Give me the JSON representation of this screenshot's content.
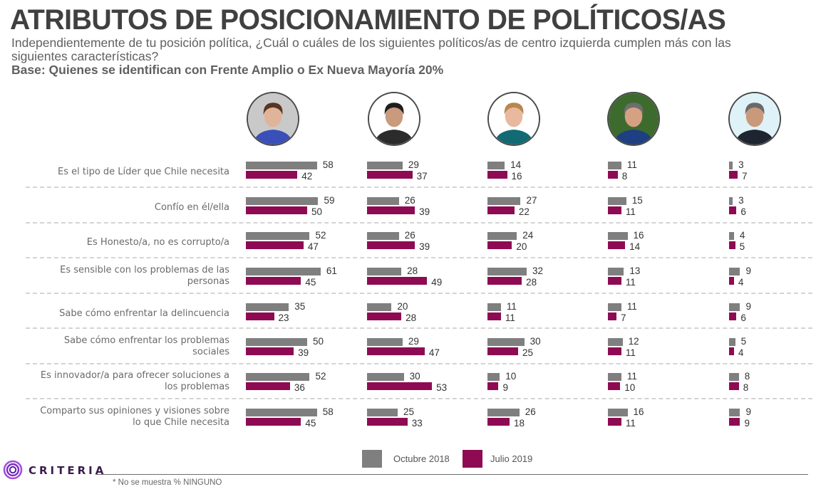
{
  "header": {
    "title": "ATRIBUTOS DE POSICIONAMIENTO DE POLÍTICOS/AS",
    "subtitle": "Independientemente de tu posición política, ¿Cuál o cuáles de los siguientes políticos/as de centro izquierda cumplen más con las siguientes características?",
    "base": "Base: Quienes se identifican con Frente Amplio o Ex Nueva Mayoría 20%"
  },
  "politicians": [
    {
      "id": "politician-1",
      "description": "woman with short brown hair, blue top",
      "bg": "#c9c9c9",
      "shirt": "#3a4fb8",
      "hair": "#5a3522",
      "skin": "#e0b49a"
    },
    {
      "id": "politician-2",
      "description": "man with glasses and dark hair, dark jacket",
      "bg": "#ffffff",
      "shirt": "#2b2b2b",
      "hair": "#1e1e1e",
      "skin": "#c99a7c"
    },
    {
      "id": "politician-3",
      "description": "woman with blonde hair, teal jacket",
      "bg": "#ffffff",
      "shirt": "#116a74",
      "hair": "#b8864e",
      "skin": "#e8b99e"
    },
    {
      "id": "politician-4",
      "description": "man with grey hair, blue suit, outdoor greenery",
      "bg": "#3d6b2e",
      "shirt": "#1e3f82",
      "hair": "#6e6e6e",
      "skin": "#d6a183"
    },
    {
      "id": "politician-5",
      "description": "man with grey hair smiling, dark suit",
      "bg": "#dff2f8",
      "shirt": "#1f2530",
      "hair": "#6a6a6a",
      "skin": "#c9997c"
    }
  ],
  "chart_data": {
    "type": "bar",
    "orientation": "horizontal",
    "title": "ATRIBUTOS DE POSICIONAMIENTO DE POLÍTICOS/AS",
    "unit": "%",
    "categories": [
      "Es el tipo de Líder que Chile necesita",
      "Confío en él/ella",
      "Es Honesto/a, no es corrupto/a",
      "Es sensible con los problemas de las personas",
      "Sabe cómo enfrentar la delincuencia",
      "Sabe cómo enfrentar los problemas sociales",
      "Es innovador/a para ofrecer soluciones a los problemas",
      "Comparto sus opiniones y visiones sobre lo que Chile necesita"
    ],
    "category_lines": [
      [
        "Es el tipo de Líder que Chile necesita"
      ],
      [
        "Confío en él/ella"
      ],
      [
        "Es Honesto/a, no es corrupto/a"
      ],
      [
        "Es sensible con los problemas de las",
        "personas"
      ],
      [
        "Sabe cómo enfrentar la delincuencia"
      ],
      [
        "Sabe cómo enfrentar los problemas",
        "sociales"
      ],
      [
        "Es innovador/a para ofrecer soluciones a",
        "los problemas"
      ],
      [
        "Comparto sus opiniones y visiones sobre",
        "lo que Chile necesita"
      ]
    ],
    "series": [
      {
        "name": "Octubre 2018",
        "color": "#7f7f7f",
        "values": [
          [
            58,
            29,
            14,
            11,
            3
          ],
          [
            59,
            26,
            27,
            15,
            3
          ],
          [
            52,
            26,
            24,
            16,
            4
          ],
          [
            61,
            28,
            32,
            13,
            9
          ],
          [
            35,
            20,
            11,
            11,
            9
          ],
          [
            50,
            29,
            30,
            12,
            5
          ],
          [
            52,
            30,
            10,
            11,
            8
          ],
          [
            58,
            25,
            26,
            16,
            9
          ]
        ]
      },
      {
        "name": "Julio 2019",
        "color": "#8e0b53",
        "values": [
          [
            42,
            37,
            16,
            8,
            7
          ],
          [
            50,
            39,
            22,
            11,
            6
          ],
          [
            47,
            39,
            20,
            14,
            5
          ],
          [
            45,
            49,
            28,
            11,
            4
          ],
          [
            23,
            28,
            11,
            7,
            6
          ],
          [
            39,
            47,
            25,
            11,
            4
          ],
          [
            36,
            53,
            9,
            10,
            8
          ],
          [
            45,
            33,
            18,
            11,
            9
          ]
        ]
      }
    ],
    "groups": [
      "politician-1",
      "politician-2",
      "politician-3",
      "politician-4",
      "politician-5"
    ],
    "legend": {
      "position": "bottom",
      "items": [
        "Octubre 2018",
        "Julio 2019"
      ]
    },
    "grid": false
  },
  "legend": {
    "oct_label": "Octubre 2018",
    "jul_label": "Julio 2019"
  },
  "footer": {
    "brand": "CRITERIA",
    "brand_color": "#8b3fd6",
    "note": "* No se muestra % NINGUNO"
  }
}
